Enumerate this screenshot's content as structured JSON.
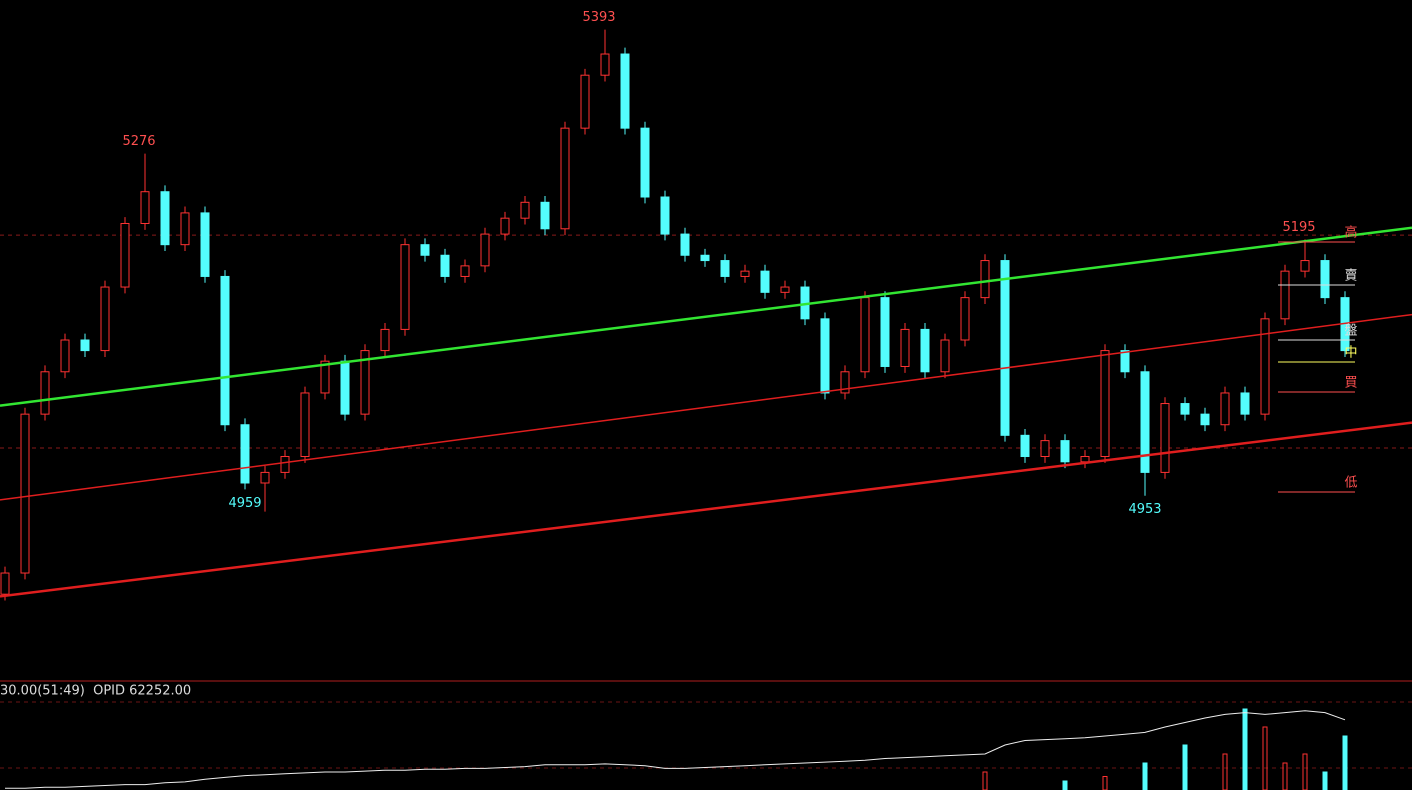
{
  "chart_data": {
    "type": "candlestick",
    "open": [
      4860,
      4880,
      5030,
      5070,
      5100,
      5090,
      5150,
      5210,
      5240,
      5190,
      5220,
      5160,
      5020,
      4965,
      4975,
      4990,
      5050,
      5080,
      5030,
      5090,
      5110,
      5190,
      5180,
      5160,
      5170,
      5200,
      5215,
      5230,
      5205,
      5300,
      5350,
      5370,
      5300,
      5235,
      5200,
      5180,
      5175,
      5160,
      5165,
      5145,
      5150,
      5120,
      5050,
      5070,
      5140,
      5075,
      5110,
      5070,
      5100,
      5140,
      5175,
      5010,
      4990,
      5005,
      4985,
      4990,
      5090,
      5070,
      4975,
      5040,
      5030,
      5020,
      5050,
      5030,
      5120,
      5165,
      5175,
      5140
    ],
    "high": [
      4886,
      5036,
      5076,
      5106,
      5106,
      5156,
      5216,
      5276,
      5246,
      5226,
      5226,
      5166,
      5026,
      4981,
      4996,
      5056,
      5086,
      5086,
      5096,
      5116,
      5196,
      5196,
      5186,
      5176,
      5206,
      5221,
      5236,
      5236,
      5306,
      5356,
      5393,
      5376,
      5306,
      5241,
      5206,
      5186,
      5181,
      5171,
      5171,
      5156,
      5156,
      5126,
      5076,
      5146,
      5146,
      5116,
      5116,
      5106,
      5146,
      5181,
      5181,
      5016,
      5011,
      5011,
      4996,
      5096,
      5096,
      5076,
      5046,
      5046,
      5036,
      5056,
      5056,
      5126,
      5171,
      5195,
      5181,
      5146
    ],
    "low": [
      4854,
      4874,
      5024,
      5064,
      5084,
      5084,
      5144,
      5204,
      5184,
      5184,
      5154,
      5014,
      4959,
      4938,
      4969,
      4984,
      5044,
      5024,
      5024,
      5084,
      5104,
      5174,
      5154,
      5154,
      5164,
      5194,
      5209,
      5199,
      5199,
      5294,
      5344,
      5294,
      5229,
      5194,
      5174,
      5169,
      5154,
      5154,
      5139,
      5139,
      5114,
      5044,
      5044,
      5064,
      5069,
      5069,
      5064,
      5064,
      5094,
      5134,
      5004,
      4984,
      4984,
      4979,
      4979,
      4984,
      5064,
      4953,
      4969,
      5024,
      5014,
      5014,
      5024,
      5024,
      5114,
      5159,
      5134,
      5084
    ],
    "close": [
      4880,
      5030,
      5070,
      5100,
      5090,
      5150,
      5210,
      5240,
      5190,
      5220,
      5160,
      5020,
      4965,
      4975,
      4990,
      5050,
      5080,
      5030,
      5090,
      5110,
      5190,
      5180,
      5160,
      5170,
      5200,
      5215,
      5230,
      5205,
      5300,
      5350,
      5370,
      5300,
      5235,
      5200,
      5180,
      5175,
      5160,
      5165,
      5145,
      5150,
      5120,
      5050,
      5070,
      5140,
      5075,
      5110,
      5070,
      5100,
      5140,
      5175,
      5010,
      4990,
      5005,
      4985,
      4990,
      5090,
      5070,
      4975,
      5040,
      5030,
      5020,
      5050,
      5030,
      5120,
      5165,
      5175,
      5140,
      5090
    ],
    "up_color": "#ff3232",
    "down_color": "#54fcfc",
    "ylim": [
      4779,
      5421
    ],
    "marked_highs": [
      7,
      30,
      65
    ],
    "marked_lows": [
      12,
      57
    ],
    "trendlines": [
      {
        "color": "#32e632",
        "start": 5038,
        "end": 5206
      },
      {
        "color": "#e01e1e",
        "start": 4949,
        "end": 5124
      },
      {
        "color": "#e01e1e",
        "start": 4858,
        "end": 5022
      }
    ],
    "levels": [
      5199,
      4998
    ],
    "side_labels": [
      "高",
      "賣",
      "盤",
      "中",
      "買",
      "低"
    ],
    "status": "30.00(51:49)  OPID 62252.00",
    "volume": [
      0,
      0,
      0,
      0,
      0,
      0,
      0,
      0,
      0,
      0,
      0,
      0,
      0,
      0,
      0,
      0,
      0,
      0,
      0,
      0,
      0,
      0,
      0,
      0,
      0,
      0,
      0,
      0,
      0,
      0,
      0,
      0,
      0,
      0,
      0,
      0,
      0,
      0,
      0,
      0,
      0,
      0,
      0,
      0,
      0,
      0,
      0,
      0,
      0,
      20,
      0,
      0,
      0,
      10,
      0,
      15,
      0,
      30,
      0,
      50,
      0,
      40,
      90,
      70,
      30,
      40,
      20,
      60
    ],
    "opid": [
      2,
      2,
      3,
      3,
      4,
      5,
      6,
      6,
      8,
      9,
      12,
      14,
      16,
      17,
      18,
      19,
      20,
      20,
      21,
      22,
      22,
      23,
      23,
      24,
      24,
      25,
      26,
      28,
      28,
      28,
      29,
      28,
      27,
      24,
      24,
      25,
      26,
      27,
      28,
      29,
      30,
      31,
      32,
      33,
      35,
      36,
      37,
      38,
      39,
      40,
      50,
      55,
      56,
      57,
      58,
      60,
      62,
      64,
      70,
      75,
      80,
      84,
      86,
      84,
      86,
      88,
      86,
      78
    ],
    "vlim": [
      0,
      100
    ]
  }
}
